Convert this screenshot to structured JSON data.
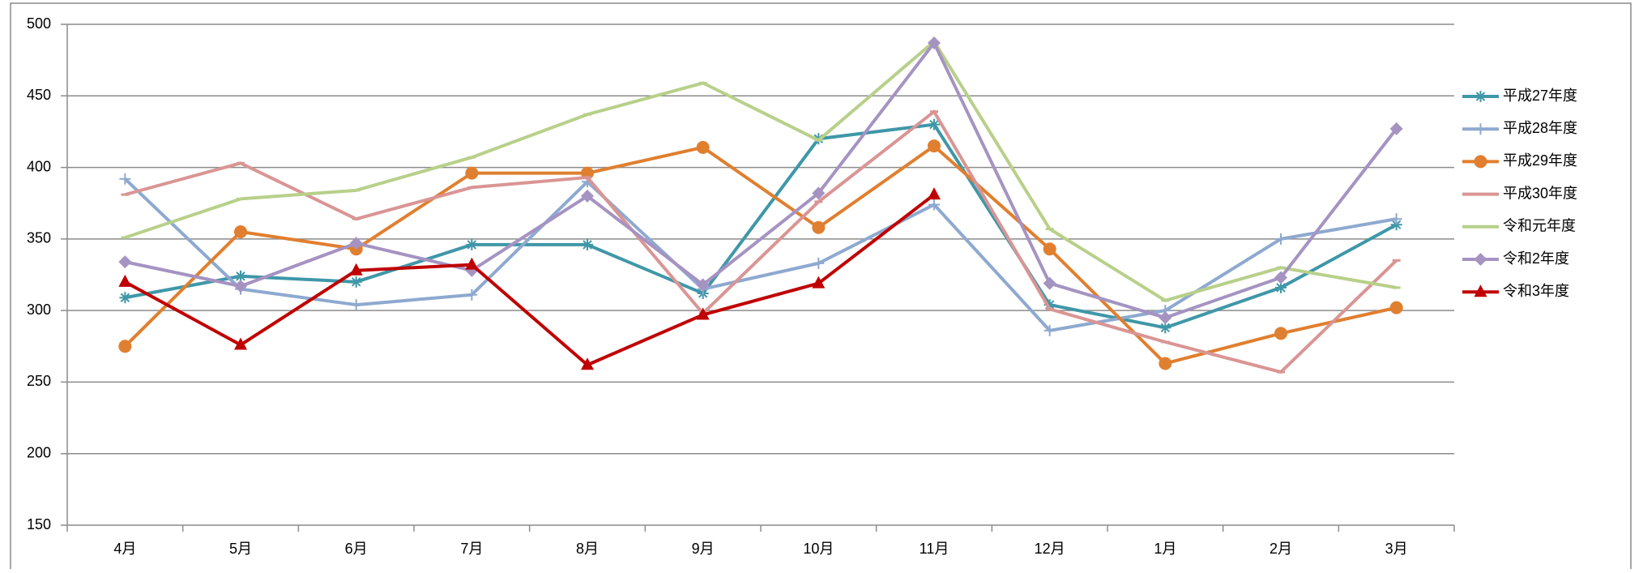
{
  "chart_data": {
    "type": "line",
    "categories": [
      "4月",
      "5月",
      "6月",
      "7月",
      "8月",
      "9月",
      "10月",
      "11月",
      "12月",
      "1月",
      "2月",
      "3月"
    ],
    "series": [
      {
        "name": "平成27年度",
        "color": "#3f97a8",
        "marker": "star",
        "values": [
          309,
          324,
          320,
          346,
          346,
          312,
          420,
          430,
          304,
          288,
          316,
          360
        ]
      },
      {
        "name": "平成28年度",
        "color": "#8ea9d0",
        "marker": "plus",
        "values": [
          392,
          315,
          304,
          311,
          390,
          315,
          333,
          374,
          286,
          300,
          350,
          364
        ]
      },
      {
        "name": "平成29年度",
        "color": "#e07f2f",
        "marker": "circle",
        "values": [
          275,
          355,
          343,
          396,
          396,
          414,
          358,
          415,
          343,
          263,
          284,
          302
        ]
      },
      {
        "name": "平成30年度",
        "color": "#d99594",
        "marker": "dash",
        "values": [
          381,
          403,
          364,
          386,
          393,
          298,
          376,
          439,
          301,
          278,
          257,
          335
        ]
      },
      {
        "name": "令和元年度",
        "color": "#b8d08a",
        "marker": "dash",
        "values": [
          351,
          378,
          384,
          407,
          437,
          459,
          419,
          488,
          357,
          307,
          330,
          316
        ]
      },
      {
        "name": "令和2年度",
        "color": "#a593c2",
        "marker": "diamond",
        "values": [
          334,
          317,
          347,
          328,
          380,
          318,
          382,
          487,
          319,
          295,
          323,
          427
        ]
      },
      {
        "name": "令和3年度",
        "color": "#c00000",
        "marker": "triangle",
        "values": [
          320,
          276,
          328,
          332,
          262,
          297,
          319,
          381,
          null,
          null,
          null,
          null
        ]
      }
    ],
    "ylim": [
      150,
      500
    ],
    "yticks": [
      150,
      200,
      250,
      300,
      350,
      400,
      450,
      500
    ],
    "grid": true,
    "legend": "right"
  }
}
